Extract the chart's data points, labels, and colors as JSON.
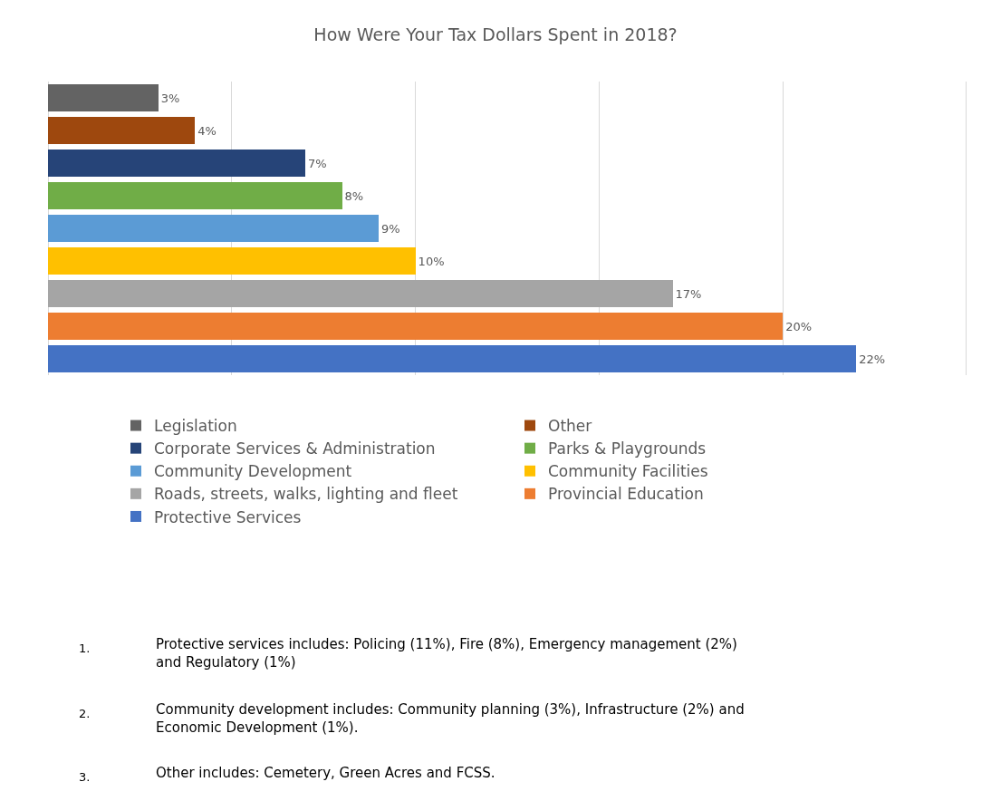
{
  "chart_data": {
    "type": "bar",
    "orientation": "horizontal",
    "stacked": true,
    "title": "How Were Your Tax Dollars Spent in 2018?",
    "categories": [
      null,
      null,
      null,
      null,
      null,
      null,
      null,
      null,
      null
    ],
    "series": [
      {
        "name": "Legislation",
        "color": "#636363",
        "values": [
          3,
          null,
          null,
          null,
          null,
          null,
          null,
          null,
          null
        ],
        "value_labels": [
          "3%",
          null,
          null,
          null,
          null,
          null,
          null,
          null,
          null
        ]
      },
      {
        "name": "Other",
        "color": "#9e480e",
        "values": [
          null,
          4,
          null,
          null,
          null,
          null,
          null,
          null,
          null
        ],
        "value_labels": [
          null,
          "4%",
          null,
          null,
          null,
          null,
          null,
          null,
          null
        ]
      },
      {
        "name": "Corporate Services & Administration",
        "color": "#264478",
        "values": [
          null,
          null,
          7,
          null,
          null,
          null,
          null,
          null,
          null
        ],
        "value_labels": [
          null,
          null,
          "7%",
          null,
          null,
          null,
          null,
          null,
          null
        ]
      },
      {
        "name": "Parks & Playgrounds",
        "color": "#70ad47",
        "values": [
          null,
          null,
          null,
          8,
          null,
          null,
          null,
          null,
          null
        ],
        "value_labels": [
          null,
          null,
          null,
          "8%",
          null,
          null,
          null,
          null,
          null
        ]
      },
      {
        "name": "Community Development",
        "color": "#5b9bd5",
        "values": [
          null,
          null,
          null,
          null,
          9,
          null,
          null,
          null,
          null
        ],
        "value_labels": [
          null,
          null,
          null,
          null,
          "9%",
          null,
          null,
          null,
          null
        ]
      },
      {
        "name": "Community Facilities",
        "color": "#ffc000",
        "values": [
          null,
          null,
          null,
          null,
          null,
          10,
          null,
          null,
          null
        ],
        "value_labels": [
          null,
          null,
          null,
          null,
          null,
          "10%",
          null,
          null,
          null
        ]
      },
      {
        "name": "Roads, streets, walks, lighting and fleet",
        "color": "#a5a5a5",
        "values": [
          null,
          null,
          null,
          null,
          null,
          null,
          17,
          null,
          null
        ],
        "value_labels": [
          null,
          null,
          null,
          null,
          null,
          null,
          "17%",
          null,
          null
        ]
      },
      {
        "name": "Provincial Education",
        "color": "#ed7d31",
        "values": [
          null,
          null,
          null,
          null,
          null,
          null,
          null,
          20,
          null
        ],
        "value_labels": [
          null,
          null,
          null,
          null,
          null,
          null,
          null,
          "20%",
          null
        ]
      },
      {
        "name": "Protective Services",
        "color": "#4472c4",
        "values": [
          null,
          null,
          null,
          null,
          null,
          null,
          null,
          null,
          22
        ],
        "value_labels": [
          null,
          null,
          null,
          null,
          null,
          null,
          null,
          null,
          "22%"
        ]
      }
    ],
    "xticks": [
      {
        "value": 0,
        "label": null
      },
      {
        "value": 5,
        "label": null
      },
      {
        "value": 10,
        "label": null
      },
      {
        "value": 15,
        "label": null
      },
      {
        "value": 20,
        "label": null
      },
      {
        "value": 25,
        "label": null
      }
    ],
    "grid": "x",
    "legend": "bottom",
    "annotations": [
      "1. Protective services includes: Policing (11%), Fire (8%), Emergency management (2%) and Regulatory (1%)",
      "2. Community development includes: Community planning (3%), Infrastructure (2%) and Economic Development (1%).",
      "3. Other includes: Cemetery, Green Acres and FCSS."
    ]
  }
}
